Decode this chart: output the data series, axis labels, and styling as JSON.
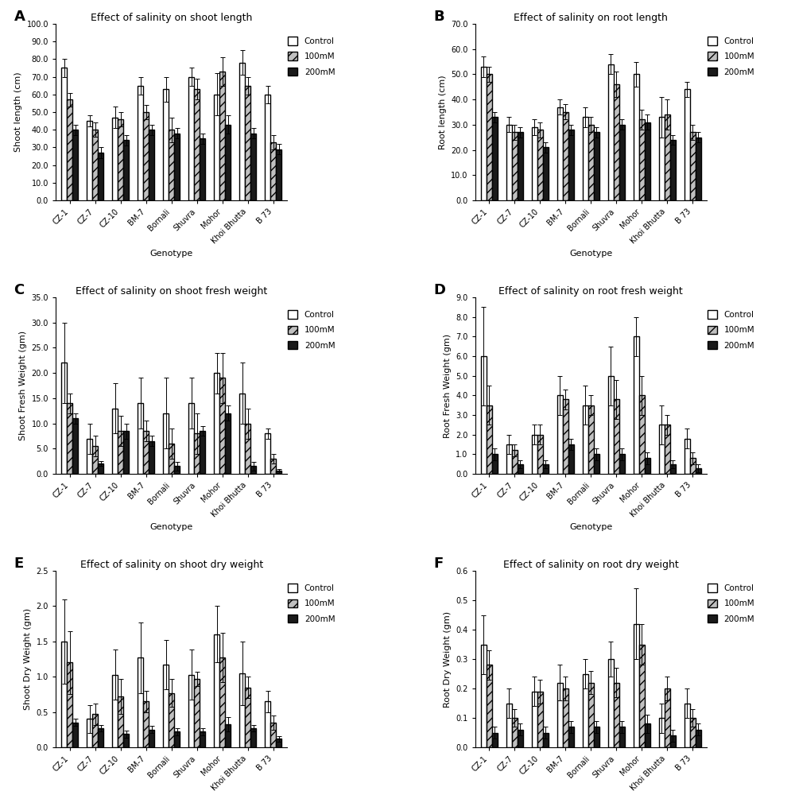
{
  "genotypes": [
    "CZ-1",
    "CZ-7",
    "CZ-10",
    "BM-7",
    "Bornali",
    "Shuvra",
    "Mohor",
    "Khoi Bhutta",
    "B 73"
  ],
  "panels": {
    "A": {
      "title": "Effect of salinity on shoot length",
      "ylabel": "Shoot length (cm)",
      "ylim": [
        0,
        100
      ],
      "yticks": [
        0,
        10,
        20,
        30,
        40,
        50,
        60,
        70,
        80,
        90,
        100
      ],
      "yticklabels": [
        "0.0",
        "10.0",
        "20.0",
        "30.0",
        "40.0",
        "50.0",
        "60.0",
        "70.0",
        "80.0",
        "90.0",
        "100.0"
      ],
      "control": [
        75,
        45,
        47,
        65,
        63,
        70,
        60,
        78,
        60
      ],
      "mM100": [
        57,
        40,
        46,
        50,
        40,
        63,
        73,
        65,
        33
      ],
      "mM200": [
        40,
        27,
        34,
        40,
        38,
        35,
        43,
        38,
        29
      ],
      "control_err": [
        5,
        3,
        6,
        5,
        7,
        5,
        12,
        7,
        5
      ],
      "mM100_err": [
        4,
        4,
        4,
        4,
        7,
        6,
        8,
        5,
        4
      ],
      "mM200_err": [
        3,
        3,
        3,
        3,
        3,
        3,
        5,
        3,
        3
      ]
    },
    "B": {
      "title": "Effect of salinity on root length",
      "ylabel": "Root length (cm)",
      "ylim": [
        0,
        70
      ],
      "yticks": [
        0,
        10,
        20,
        30,
        40,
        50,
        60,
        70
      ],
      "yticklabels": [
        "0.0",
        "10.0",
        "20.0",
        "30.0",
        "40.0",
        "50.0",
        "60.0",
        "70.0"
      ],
      "control": [
        53,
        30,
        29,
        37,
        33,
        54,
        50,
        33,
        44
      ],
      "mM100": [
        50,
        27,
        28,
        35,
        30,
        46,
        32,
        34,
        27
      ],
      "mM200": [
        33,
        27,
        21,
        28,
        27,
        30,
        31,
        24,
        25
      ],
      "control_err": [
        4,
        3,
        3,
        3,
        4,
        4,
        5,
        8,
        3
      ],
      "mM100_err": [
        3,
        3,
        3,
        3,
        3,
        5,
        4,
        6,
        3
      ],
      "mM200_err": [
        2,
        2,
        2,
        2,
        2,
        2,
        3,
        2,
        2
      ]
    },
    "C": {
      "title": "Effect of salinity on shoot fresh weight",
      "ylabel": "Shoot Fresh Weight (gm)",
      "ylim": [
        0,
        35
      ],
      "yticks": [
        0,
        5,
        10,
        15,
        20,
        25,
        30,
        35
      ],
      "yticklabels": [
        "0.0",
        "5.0",
        "10.0",
        "15.0",
        "20.0",
        "25.0",
        "30.0",
        "35.0"
      ],
      "control": [
        22,
        7,
        13,
        14,
        12,
        14,
        20,
        16,
        8
      ],
      "mM100": [
        14,
        5.5,
        8.5,
        8.5,
        6,
        8,
        19,
        10,
        3
      ],
      "mM200": [
        11,
        2,
        8.5,
        6.5,
        1.5,
        8.5,
        12,
        1.5,
        0.6
      ],
      "control_err": [
        8,
        3,
        5,
        5,
        7,
        5,
        4,
        6,
        1
      ],
      "mM100_err": [
        2,
        2,
        3,
        2,
        3,
        4,
        5,
        3,
        1
      ],
      "mM200_err": [
        1,
        0.5,
        1.5,
        1,
        0.8,
        1,
        1.5,
        0.8,
        0.4
      ]
    },
    "D": {
      "title": "Effect of salinity on root fresh weight",
      "ylabel": "Root Fresh Weight (gm)",
      "ylim": [
        0,
        9
      ],
      "yticks": [
        0,
        1,
        2,
        3,
        4,
        5,
        6,
        7,
        8,
        9
      ],
      "yticklabels": [
        "0.0",
        "1.0",
        "2.0",
        "3.0",
        "4.0",
        "5.0",
        "6.0",
        "7.0",
        "8.0",
        "9.0"
      ],
      "control": [
        6,
        1.5,
        2,
        4,
        3.5,
        5,
        7,
        2.5,
        1.8
      ],
      "mM100": [
        3.5,
        1.2,
        2,
        3.8,
        3.5,
        3.8,
        4,
        2.5,
        0.8
      ],
      "mM200": [
        1,
        0.5,
        0.5,
        1.5,
        1,
        1,
        0.8,
        0.5,
        0.3
      ],
      "control_err": [
        2.5,
        0.5,
        0.5,
        1,
        1,
        1.5,
        1,
        1,
        0.5
      ],
      "mM100_err": [
        1,
        0.3,
        0.5,
        0.5,
        0.5,
        1,
        1,
        0.5,
        0.3
      ],
      "mM200_err": [
        0.3,
        0.2,
        0.2,
        0.3,
        0.3,
        0.3,
        0.3,
        0.2,
        0.2
      ]
    },
    "E": {
      "title": "Effect of salinity on shoot dry weight",
      "ylabel": "Shoot Dry Weight (gm)",
      "ylim": [
        0,
        2.5
      ],
      "yticks": [
        0.0,
        0.5,
        1.0,
        1.5,
        2.0,
        2.5
      ],
      "yticklabels": [
        "0.0",
        "0.5",
        "1.0",
        "1.5",
        "2.0",
        "2.5"
      ],
      "control": [
        1.5,
        0.4,
        1.03,
        1.27,
        1.17,
        1.03,
        1.6,
        1.05,
        0.65
      ],
      "mM100": [
        1.2,
        0.47,
        0.72,
        0.65,
        0.77,
        0.97,
        1.27,
        0.85,
        0.35
      ],
      "mM200": [
        0.35,
        0.27,
        0.19,
        0.25,
        0.22,
        0.22,
        0.33,
        0.27,
        0.12
      ],
      "control_err": [
        0.6,
        0.2,
        0.35,
        0.5,
        0.35,
        0.35,
        0.4,
        0.45,
        0.15
      ],
      "mM100_err": [
        0.45,
        0.15,
        0.25,
        0.15,
        0.2,
        0.1,
        0.35,
        0.15,
        0.1
      ],
      "mM200_err": [
        0.05,
        0.05,
        0.05,
        0.05,
        0.05,
        0.05,
        0.1,
        0.05,
        0.04
      ]
    },
    "F": {
      "title": "Effect of salinity on root dry weight",
      "ylabel": "Root Dry Weight (gm)",
      "ylim": [
        0,
        0.6
      ],
      "yticks": [
        0.0,
        0.1,
        0.2,
        0.3,
        0.4,
        0.5,
        0.6
      ],
      "yticklabels": [
        "0.0",
        "0.1",
        "0.2",
        "0.3",
        "0.4",
        "0.5",
        "0.6"
      ],
      "control": [
        0.35,
        0.15,
        0.19,
        0.22,
        0.25,
        0.3,
        0.42,
        0.1,
        0.15
      ],
      "mM100": [
        0.28,
        0.1,
        0.19,
        0.2,
        0.22,
        0.22,
        0.35,
        0.2,
        0.1
      ],
      "mM200": [
        0.05,
        0.06,
        0.05,
        0.07,
        0.07,
        0.07,
        0.08,
        0.04,
        0.06
      ],
      "control_err": [
        0.1,
        0.05,
        0.05,
        0.06,
        0.05,
        0.06,
        0.12,
        0.05,
        0.05
      ],
      "mM100_err": [
        0.05,
        0.03,
        0.04,
        0.04,
        0.04,
        0.05,
        0.07,
        0.04,
        0.03
      ],
      "mM200_err": [
        0.02,
        0.02,
        0.02,
        0.02,
        0.02,
        0.02,
        0.03,
        0.02,
        0.02
      ]
    }
  },
  "bar_colors": {
    "control": "#FFFFFF",
    "mM100": "#C0C0C0",
    "mM200": "#1a1a1a"
  },
  "bar_hatches": {
    "control": "",
    "mM100": "///",
    "mM200": ""
  },
  "legend_labels": [
    "Control",
    "100mM",
    "200mM"
  ],
  "xlabel": "Genotype",
  "bar_width": 0.22,
  "edgecolor": "#000000",
  "panel_labels": [
    "A",
    "B",
    "C",
    "D",
    "E",
    "F"
  ],
  "label_fontsize": 8,
  "title_fontsize": 9,
  "tick_fontsize": 7,
  "legend_fontsize": 7.5
}
